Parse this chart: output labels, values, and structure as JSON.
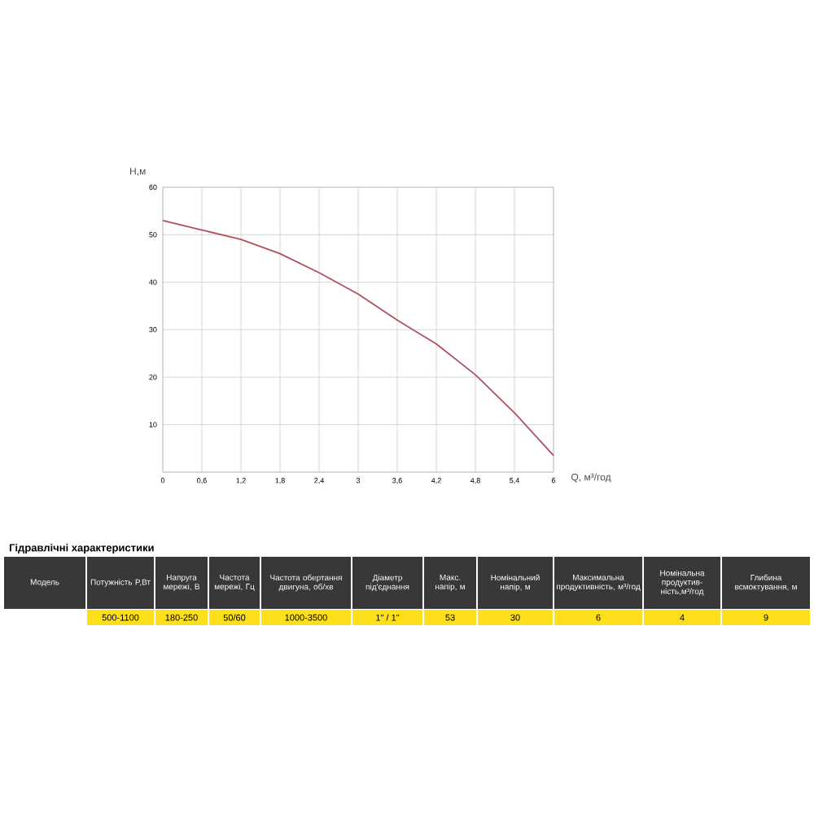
{
  "chart_data": [
    {
      "type": "line",
      "xlabel": "Q, м³/год",
      "ylabel": "H,м",
      "x": [
        0,
        0.6,
        1.2,
        1.8,
        2.4,
        3,
        3.6,
        4.2,
        4.8,
        5.4,
        6
      ],
      "values": [
        53,
        51,
        49,
        46,
        42,
        37.5,
        32,
        27,
        20.5,
        12.5,
        3.5
      ],
      "color": "#b0505e",
      "xlim": [
        0,
        6
      ],
      "ylim": [
        0,
        60
      ],
      "xticks": [
        {
          "value": 0,
          "label": "0"
        },
        {
          "value": 0.6,
          "label": "0,6"
        },
        {
          "value": 1.2,
          "label": "1,2"
        },
        {
          "value": 1.8,
          "label": "1,8"
        },
        {
          "value": 2.4,
          "label": "2,4"
        },
        {
          "value": 3,
          "label": "3"
        },
        {
          "value": 3.6,
          "label": "3,6"
        },
        {
          "value": 4.2,
          "label": "4,2"
        },
        {
          "value": 4.8,
          "label": "4,8"
        },
        {
          "value": 5.4,
          "label": "5,4"
        },
        {
          "value": 6,
          "label": "6"
        }
      ],
      "yticks": [
        {
          "value": 0,
          "label": null
        },
        10,
        20,
        30,
        40,
        50,
        60
      ],
      "grid": true
    },
    {
      "type": "other",
      "title": "Гідравлічні характеристики",
      "categories": [
        "Модель",
        "Потужність P,Вт",
        "Напруга мережі, В",
        "Частота мережі, Гц",
        "Частота обертання двигуна, об/хв",
        "Діаметр під'єднання",
        "Макс. напір, м",
        "Номінальний напір, м",
        "Максимальна продуктивність, м³/год",
        "Номінальна продуктив-ність,м³/год",
        "Глибина всмоктування, м"
      ],
      "cell_labels": [
        [
          null,
          "500-1100",
          "180-250",
          "50/60",
          "1000-3500",
          "1\" / 1\"",
          "53",
          "30",
          "6",
          "4",
          "9"
        ]
      ]
    }
  ]
}
